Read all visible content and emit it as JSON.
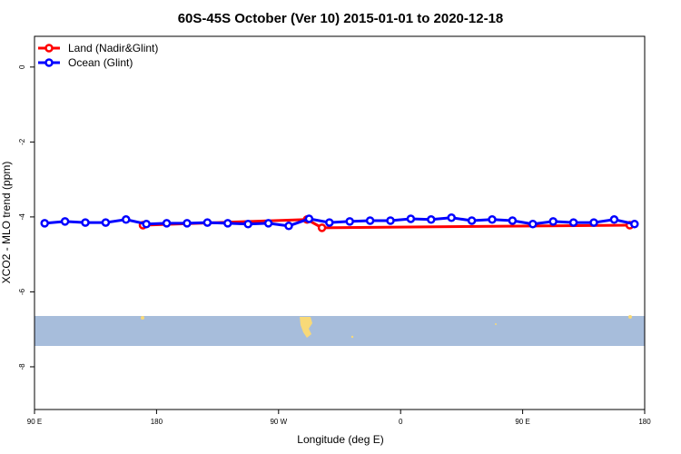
{
  "chart_data": {
    "type": "line",
    "title": "60S-45S October (Ver 10)   2015-01-01 to 2020-12-18",
    "x_label": "Longitude (deg E)",
    "y_label": "XCO2 - MLO trend (ppm)",
    "xlim": [
      90,
      540
    ],
    "ylim": [
      -9.14,
      0.82
    ],
    "xticks": [
      {
        "value": 90,
        "label": "90 E"
      },
      {
        "value": 180,
        "label": "180"
      },
      {
        "value": 270,
        "label": "90 W"
      },
      {
        "value": 360,
        "label": "0"
      },
      {
        "value": 450,
        "label": "90 E"
      },
      {
        "value": 540,
        "label": "180"
      }
    ],
    "yticks": [
      0,
      -2,
      -4,
      -6,
      -8
    ],
    "legend": "top-left",
    "series": [
      {
        "name": "Land (Nadir&Glint)",
        "color": "#ff0000",
        "x": [
          170,
          291,
          302,
          529
        ],
        "values": [
          -4.22,
          -4.07,
          -4.29,
          -4.22
        ]
      },
      {
        "name": "Ocean (Glint)",
        "color": "#0000ff",
        "x": [
          97.5,
          112.5,
          127.5,
          142.5,
          157.5,
          172.5,
          187.5,
          202.5,
          217.5,
          232.5,
          247.5,
          262.5,
          277.5,
          292.5,
          307.5,
          322.5,
          337.5,
          352.5,
          367.5,
          382.5,
          397.5,
          412.5,
          427.5,
          442.5,
          457.5,
          472.5,
          487.5,
          502.5,
          517.5,
          532.5
        ],
        "values": [
          -4.17,
          -4.12,
          -4.15,
          -4.15,
          -4.07,
          -4.19,
          -4.17,
          -4.17,
          -4.15,
          -4.17,
          -4.19,
          -4.17,
          -4.24,
          -4.05,
          -4.15,
          -4.12,
          -4.1,
          -4.1,
          -4.05,
          -4.07,
          -4.02,
          -4.1,
          -4.07,
          -4.1,
          -4.19,
          -4.12,
          -4.15,
          -4.15,
          -4.07,
          -4.19
        ]
      }
    ]
  }
}
